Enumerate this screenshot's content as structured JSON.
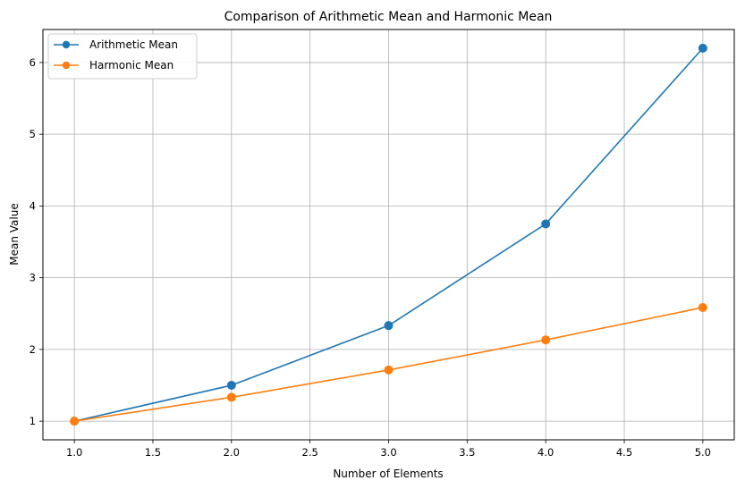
{
  "chart_data": {
    "type": "line",
    "title": "Comparison of Arithmetic Mean and Harmonic Mean",
    "xlabel": "Number of Elements",
    "ylabel": "Mean Value",
    "x": [
      1,
      2,
      3,
      4,
      5
    ],
    "xlim": [
      0.8,
      5.2
    ],
    "ylim": [
      0.74,
      6.46
    ],
    "xticks": [
      "1.0",
      "1.5",
      "2.0",
      "2.5",
      "3.0",
      "3.5",
      "4.0",
      "4.5",
      "5.0"
    ],
    "yticks": [
      "1",
      "2",
      "3",
      "4",
      "5",
      "6"
    ],
    "grid": true,
    "legend_position": "top-left",
    "series": [
      {
        "name": "Arithmetic Mean",
        "color": "#1f77b4",
        "marker": "circle",
        "values": [
          1.0,
          1.5,
          2.333,
          3.75,
          6.2
        ]
      },
      {
        "name": "Harmonic Mean",
        "color": "#ff7f0e",
        "marker": "circle",
        "values": [
          1.0,
          1.333,
          1.714,
          2.133,
          2.585
        ]
      }
    ]
  }
}
